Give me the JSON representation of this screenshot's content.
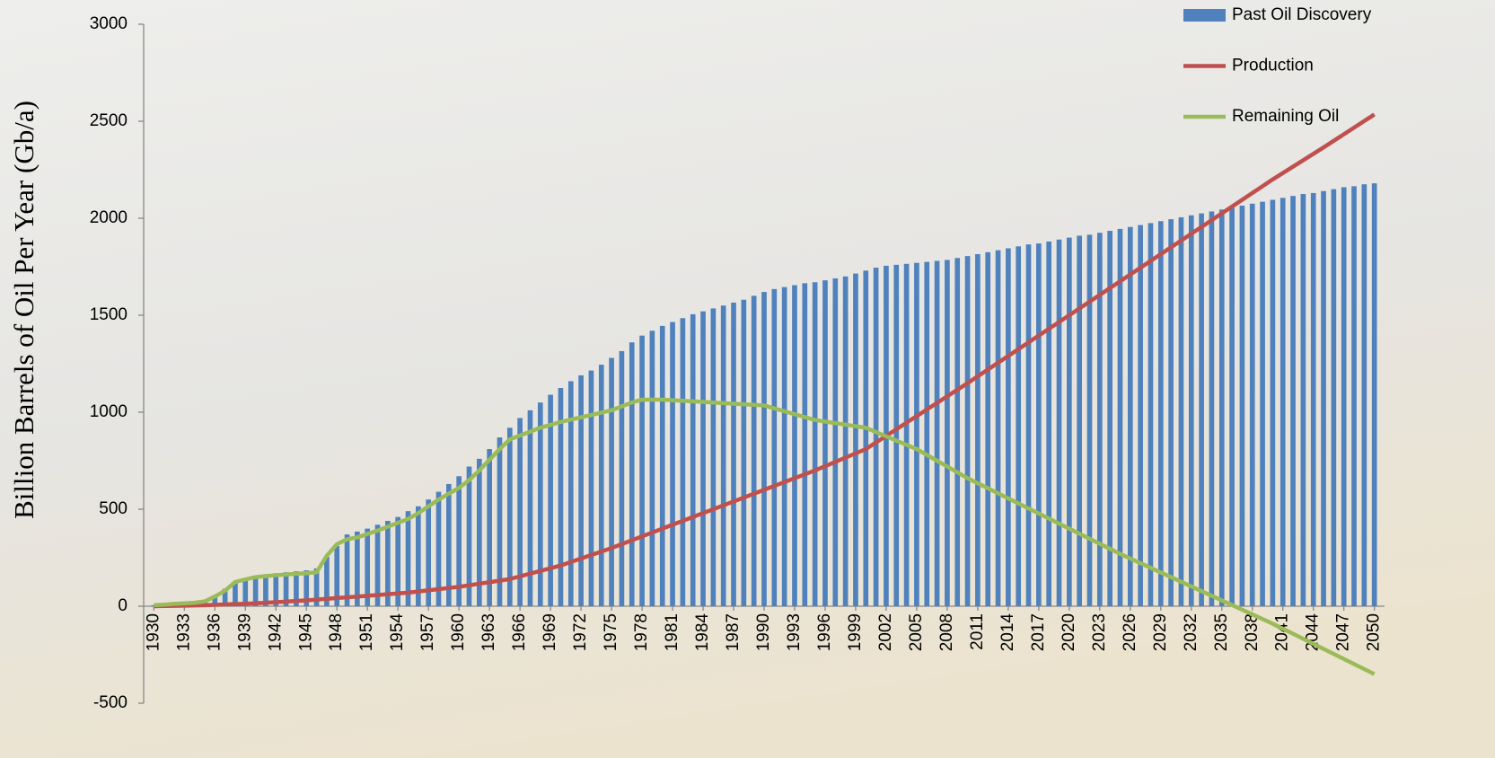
{
  "chart_data": {
    "type": "bar",
    "y_label": "Billion Barrels of Oil Per Year (Gb/a)",
    "x": [
      1930,
      1931,
      1932,
      1933,
      1934,
      1935,
      1936,
      1937,
      1938,
      1939,
      1940,
      1941,
      1942,
      1943,
      1944,
      1945,
      1946,
      1947,
      1948,
      1949,
      1950,
      1951,
      1952,
      1953,
      1954,
      1955,
      1956,
      1957,
      1958,
      1959,
      1960,
      1961,
      1962,
      1963,
      1964,
      1965,
      1966,
      1967,
      1968,
      1969,
      1970,
      1971,
      1972,
      1973,
      1974,
      1975,
      1976,
      1977,
      1978,
      1979,
      1980,
      1981,
      1982,
      1983,
      1984,
      1985,
      1986,
      1987,
      1988,
      1989,
      1990,
      1991,
      1992,
      1993,
      1994,
      1995,
      1996,
      1997,
      1998,
      1999,
      2000,
      2001,
      2002,
      2003,
      2004,
      2005,
      2006,
      2007,
      2008,
      2009,
      2010,
      2011,
      2012,
      2013,
      2014,
      2015,
      2016,
      2017,
      2018,
      2019,
      2020,
      2021,
      2022,
      2023,
      2024,
      2025,
      2026,
      2027,
      2028,
      2029,
      2030,
      2031,
      2032,
      2033,
      2034,
      2035,
      2036,
      2037,
      2038,
      2039,
      2040,
      2041,
      2042,
      2043,
      2044,
      2045,
      2046,
      2047,
      2048,
      2049,
      2050
    ],
    "xlim": [
      1929,
      2051
    ],
    "xticks": [
      1930,
      1933,
      1936,
      1939,
      1942,
      1945,
      1948,
      1951,
      1954,
      1957,
      1960,
      1963,
      1966,
      1969,
      1972,
      1975,
      1978,
      1981,
      1984,
      1987,
      1990,
      1993,
      1996,
      1999,
      2002,
      2005,
      2008,
      2011,
      2014,
      2017,
      2020,
      2023,
      2026,
      2029,
      2032,
      2035,
      2038,
      2041,
      2044,
      2047,
      2050
    ],
    "ylim": [
      -500,
      3000
    ],
    "yticks": [
      -500,
      0,
      500,
      1000,
      1500,
      2000,
      2500,
      3000
    ],
    "legend": "top-right",
    "series": [
      {
        "name": "Past Oil Discovery",
        "type": "bar",
        "color": "#4f81bd",
        "values": [
          5,
          7,
          10,
          15,
          18,
          20,
          50,
          90,
          125,
          140,
          155,
          165,
          170,
          175,
          180,
          185,
          195,
          255,
          310,
          370,
          385,
          400,
          420,
          440,
          460,
          490,
          515,
          550,
          590,
          630,
          670,
          720,
          760,
          810,
          870,
          920,
          970,
          1010,
          1050,
          1090,
          1125,
          1160,
          1190,
          1215,
          1245,
          1280,
          1315,
          1360,
          1395,
          1420,
          1445,
          1465,
          1485,
          1505,
          1520,
          1535,
          1550,
          1565,
          1580,
          1600,
          1620,
          1635,
          1645,
          1655,
          1665,
          1670,
          1680,
          1690,
          1700,
          1715,
          1730,
          1745,
          1755,
          1760,
          1765,
          1770,
          1775,
          1780,
          1785,
          1795,
          1805,
          1815,
          1825,
          1835,
          1845,
          1855,
          1865,
          1870,
          1880,
          1890,
          1900,
          1910,
          1915,
          1925,
          1935,
          1945,
          1955,
          1965,
          1975,
          1985,
          1995,
          2005,
          2015,
          2025,
          2035,
          2045,
          2055,
          2065,
          2075,
          2085,
          2095,
          2105,
          2115,
          2125,
          2130,
          2140,
          2150,
          2160,
          2165,
          2175,
          2180
        ]
      },
      {
        "name": "Production",
        "type": "line",
        "color": "#c0504d",
        "values": [
          0,
          1,
          2,
          3,
          4,
          5,
          7,
          9,
          11,
          13,
          15,
          18,
          21,
          24,
          27,
          30,
          34,
          38,
          42,
          46,
          50,
          54,
          58,
          62,
          66,
          70,
          76,
          82,
          88,
          94,
          100,
          108,
          116,
          124,
          132,
          140,
          154,
          168,
          182,
          196,
          210,
          228,
          246,
          264,
          282,
          300,
          320,
          340,
          360,
          380,
          400,
          420,
          440,
          460,
          480,
          500,
          520,
          540,
          560,
          580,
          600,
          620,
          640,
          660,
          680,
          700,
          722,
          744,
          766,
          788,
          810,
          844,
          878,
          912,
          946,
          980,
          1014,
          1048,
          1082,
          1116,
          1150,
          1185,
          1220,
          1255,
          1290,
          1325,
          1360,
          1395,
          1430,
          1465,
          1500,
          1535,
          1570,
          1605,
          1640,
          1675,
          1710,
          1745,
          1780,
          1815,
          1850,
          1885,
          1920,
          1955,
          1990,
          2025,
          2060,
          2095,
          2130,
          2165,
          2200,
          2233,
          2266,
          2299,
          2332,
          2365,
          2399,
          2433,
          2467,
          2501,
          2535
        ]
      },
      {
        "name": "Remaining Oil",
        "type": "line",
        "color": "#9bbb59",
        "values": [
          5,
          8,
          12,
          15,
          18,
          25,
          50,
          80,
          125,
          138,
          150,
          155,
          160,
          163,
          167,
          170,
          175,
          260,
          320,
          345,
          355,
          372,
          390,
          410,
          430,
          450,
          480,
          515,
          550,
          580,
          610,
          650,
          700,
          755,
          810,
          860,
          880,
          900,
          920,
          935,
          950,
          962,
          974,
          986,
          998,
          1010,
          1030,
          1050,
          1065,
          1065,
          1065,
          1062,
          1059,
          1056,
          1053,
          1050,
          1047,
          1044,
          1041,
          1038,
          1035,
          1020,
          1005,
          990,
          975,
          960,
          952,
          944,
          936,
          928,
          920,
          898,
          876,
          854,
          832,
          810,
          780,
          750,
          720,
          690,
          660,
          634,
          608,
          582,
          556,
          530,
          504,
          478,
          452,
          426,
          400,
          374,
          348,
          322,
          296,
          270,
          246,
          222,
          198,
          174,
          150,
          126,
          102,
          78,
          54,
          30,
          6,
          -18,
          -42,
          -66,
          -90,
          -116,
          -142,
          -168,
          -194,
          -220,
          -246,
          -272,
          -298,
          -324,
          -350
        ]
      }
    ]
  }
}
